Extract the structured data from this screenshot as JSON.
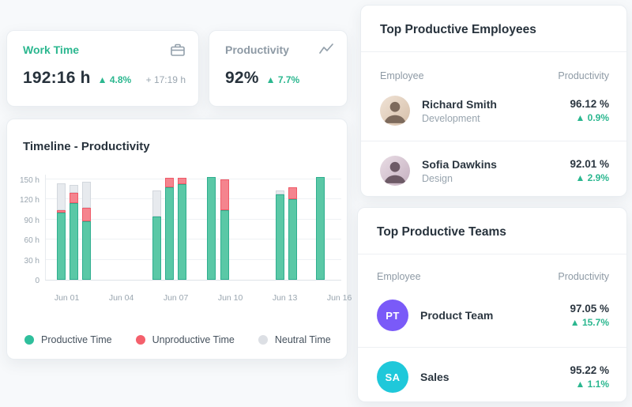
{
  "colors": {
    "accent_green": "#2bb78f",
    "productive_fill": "#5ac8a6",
    "productive_border": "#2fae8f",
    "unproductive_fill": "#f5848e",
    "unproductive_border": "#ee5a68",
    "neutral_fill": "#e7eaee",
    "neutral_border": "#d2d7dd"
  },
  "work_time_card": {
    "label": "Work Time",
    "value": "192:16 h",
    "delta": "▲ 4.8%",
    "secondary": "+ 17:19 h"
  },
  "productivity_card": {
    "label": "Productivity",
    "value": "92%",
    "delta": "▲ 7.7%"
  },
  "timeline_card": {
    "title": "Timeline - Productivity",
    "legend": [
      {
        "label": "Productive Time",
        "color": "#2fbf9c"
      },
      {
        "label": "Unproductive Time",
        "color": "#f4606c"
      },
      {
        "label": "Neutral Time",
        "color": "#dcdfe4"
      }
    ]
  },
  "chart_data": {
    "type": "bar",
    "stacked": true,
    "title": "Timeline - Productivity",
    "unit": "hours",
    "axis_max": 150,
    "ytick_values": [
      0,
      30,
      60,
      90,
      120,
      150
    ],
    "ytick_labels": [
      "0",
      "30 h",
      "60 h",
      "90 h",
      "120 h",
      "150 h"
    ],
    "xtick_days": [
      0,
      3,
      6,
      9,
      12,
      15
    ],
    "xtick_labels": [
      "Jun 01",
      "Jun 04",
      "Jun 07",
      "Jun 10",
      "Jun 13",
      "Jun 16"
    ],
    "series_names": [
      "Productive Time",
      "Unproductive Time",
      "Neutral Time"
    ],
    "bars": [
      {
        "day_offset": -0.35,
        "productive": 100,
        "unproductive": 4,
        "neutral": 40
      },
      {
        "day_offset": 0.35,
        "productive": 115,
        "unproductive": 15,
        "neutral": 12
      },
      {
        "day_offset": 1.05,
        "productive": 88,
        "unproductive": 20,
        "neutral": 38
      },
      {
        "day_offset": 4.9,
        "productive": 95,
        "unproductive": 0,
        "neutral": 38
      },
      {
        "day_offset": 5.6,
        "productive": 138,
        "unproductive": 14,
        "neutral": 0
      },
      {
        "day_offset": 6.3,
        "productive": 143,
        "unproductive": 9,
        "neutral": 0
      },
      {
        "day_offset": 7.9,
        "productive": 154,
        "unproductive": 0,
        "neutral": 0
      },
      {
        "day_offset": 8.65,
        "productive": 104,
        "unproductive": 46,
        "neutral": 0
      },
      {
        "day_offset": 11.7,
        "productive": 128,
        "unproductive": 0,
        "neutral": 5
      },
      {
        "day_offset": 12.4,
        "productive": 121,
        "unproductive": 17,
        "neutral": 0
      },
      {
        "day_offset": 13.9,
        "productive": 154,
        "unproductive": 0,
        "neutral": 0
      }
    ]
  },
  "employees_card": {
    "title": "Top Productive Employees",
    "columns": {
      "employee": "Employee",
      "productivity": "Productivity"
    },
    "rows": [
      {
        "name": "Richard Smith",
        "role": "Development",
        "value": "96.12 %",
        "delta": "▲ 0.9%"
      },
      {
        "name": "Sofia Dawkins",
        "role": "Design",
        "value": "92.01 %",
        "delta": "▲ 2.9%"
      }
    ]
  },
  "teams_card": {
    "title": "Top Productive Teams",
    "columns": {
      "employee": "Employee",
      "productivity": "Productivity"
    },
    "rows": [
      {
        "initials": "PT",
        "name": "Product Team",
        "value": "97.05 %",
        "delta": "▲ 15.7%",
        "avatar_color": "#7a5af8"
      },
      {
        "initials": "SA",
        "name": "Sales",
        "value": "95.22 %",
        "delta": "▲ 1.1%",
        "avatar_color": "#1fc8da"
      }
    ]
  }
}
